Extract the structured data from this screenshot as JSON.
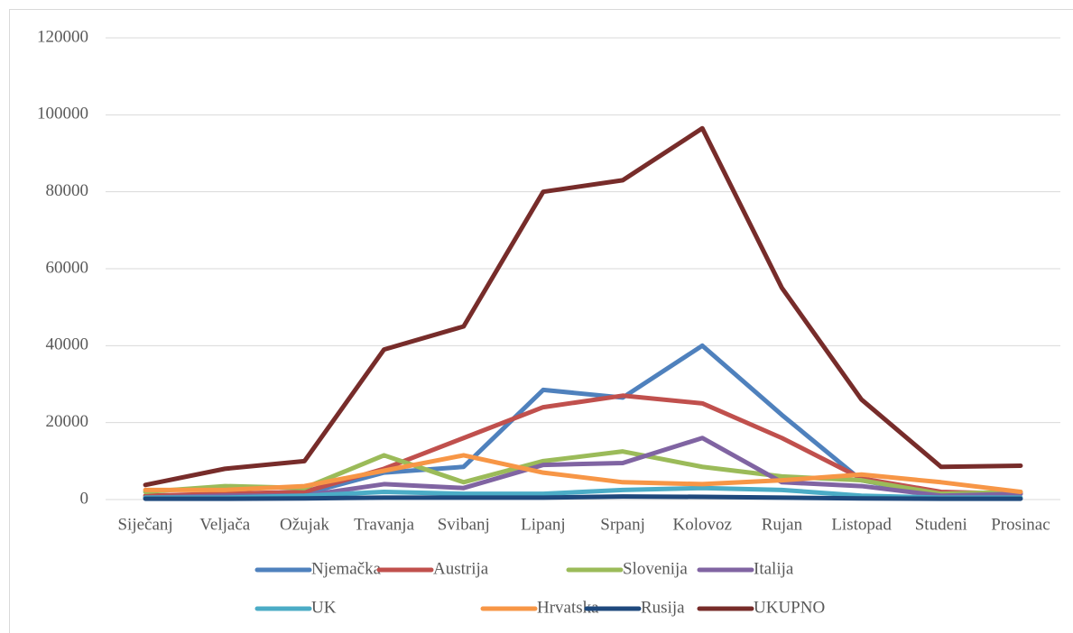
{
  "chart_data": {
    "type": "line",
    "categories": [
      "Siječanj",
      "Veljača",
      "Ožujak",
      "Travanja",
      "Svibanj",
      "Lipanj",
      "Srpanj",
      "Kolovoz",
      "Rujan",
      "Listopad",
      "Studeni",
      "Prosinac"
    ],
    "series": [
      {
        "name": "Njemačka",
        "color": "#4f81bd",
        "values": [
          500,
          1000,
          1500,
          7000,
          8500,
          28500,
          26500,
          40000,
          22000,
          5000,
          1000,
          1500
        ]
      },
      {
        "name": "Austrija",
        "color": "#c0504d",
        "values": [
          1000,
          1500,
          2000,
          8000,
          16000,
          24000,
          27000,
          25000,
          16000,
          5500,
          2000,
          1500
        ]
      },
      {
        "name": "Slovenija",
        "color": "#9bbb59",
        "values": [
          2000,
          3500,
          3000,
          11500,
          4500,
          10000,
          12500,
          8500,
          6000,
          5000,
          1500,
          2000
        ]
      },
      {
        "name": "Italija",
        "color": "#8064a2",
        "values": [
          500,
          1000,
          1000,
          4000,
          3000,
          9000,
          9500,
          16000,
          4500,
          3500,
          1000,
          1500
        ]
      },
      {
        "name": "UK",
        "color": "#4bacc6",
        "values": [
          500,
          500,
          1000,
          2000,
          1500,
          1500,
          2500,
          3000,
          2500,
          1000,
          500,
          500
        ]
      },
      {
        "name": "Hrvatska",
        "color": "#f79646",
        "values": [
          2500,
          2500,
          3500,
          7500,
          11500,
          7000,
          4500,
          4000,
          5000,
          6500,
          4500,
          2000
        ]
      },
      {
        "name": "Rusija",
        "color": "#1f497d",
        "values": [
          200,
          200,
          300,
          500,
          500,
          500,
          800,
          700,
          500,
          300,
          200,
          200
        ]
      },
      {
        "name": "UKUPNO",
        "color": "#772c2a",
        "values": [
          3800,
          8000,
          10000,
          39000,
          45000,
          80000,
          83000,
          96500,
          55000,
          26000,
          8500,
          8800
        ]
      }
    ],
    "ylim": [
      0,
      120000
    ],
    "yticks": [
      0,
      20000,
      40000,
      60000,
      80000,
      100000,
      120000
    ],
    "grid": true,
    "legend": "bottom"
  }
}
